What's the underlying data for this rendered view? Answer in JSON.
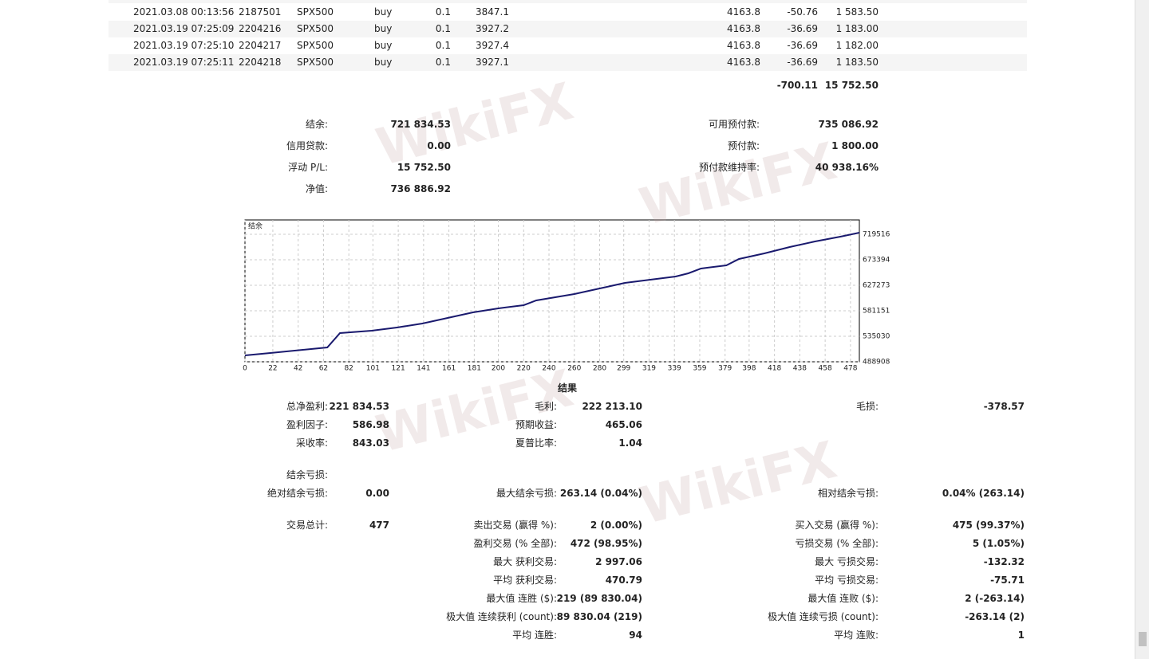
{
  "watermark": "WikiFX",
  "trades": {
    "rows": [
      [
        "2021.03.08 00:13:56",
        "2187501",
        "SPX500",
        "buy",
        "0.1",
        "3847.1",
        "4163.8",
        "-50.76",
        "1 583.50"
      ],
      [
        "2021.03.19 07:25:09",
        "2204216",
        "SPX500",
        "buy",
        "0.1",
        "3927.2",
        "4163.8",
        "-36.69",
        "1 183.00"
      ],
      [
        "2021.03.19 07:25:10",
        "2204217",
        "SPX500",
        "buy",
        "0.1",
        "3927.4",
        "4163.8",
        "-36.69",
        "1 182.00"
      ],
      [
        "2021.03.19 07:25:11",
        "2204218",
        "SPX500",
        "buy",
        "0.1",
        "3927.1",
        "4163.8",
        "-36.69",
        "1 183.50"
      ]
    ],
    "totals": [
      "-700.11",
      "15 752.50"
    ]
  },
  "account": {
    "left": [
      [
        "结余:",
        "721 834.53"
      ],
      [
        "信用贷款:",
        "0.00"
      ],
      [
        "浮动 P/L:",
        "15 752.50"
      ],
      [
        "净值:",
        "736 886.92"
      ]
    ],
    "right": [
      [
        "可用预付款:",
        "735 086.92"
      ],
      [
        "预付款:",
        "1 800.00"
      ],
      [
        "预付款维持率:",
        "40 938.16%"
      ]
    ]
  },
  "chart_data": {
    "type": "line",
    "title": "结余",
    "x": [
      0,
      20,
      65,
      75,
      100,
      120,
      140,
      160,
      180,
      200,
      220,
      230,
      260,
      280,
      300,
      320,
      340,
      350,
      360,
      380,
      390,
      410,
      430,
      450,
      470,
      485
    ],
    "values": [
      500438,
      504762,
      514852,
      540797,
      545121,
      550886,
      558094,
      568183,
      578273,
      585479,
      591244,
      599893,
      611423,
      621513,
      631602,
      637367,
      643132,
      648898,
      657546,
      663311,
      674842,
      684931,
      696462,
      706551,
      715199,
      722405
    ],
    "color": "#1a1a6e",
    "xlim": [
      0,
      485
    ],
    "ylim": [
      488908,
      745460
    ],
    "xticks": [
      0,
      22,
      42,
      62,
      82,
      101,
      121,
      141,
      161,
      181,
      200,
      220,
      240,
      260,
      280,
      299,
      319,
      339,
      359,
      379,
      398,
      418,
      438,
      458,
      478
    ],
    "yticks": [
      488908,
      535030,
      581151,
      627273,
      673394,
      719516
    ],
    "grid": true
  },
  "results": {
    "title": "结果",
    "rows": [
      [
        [
          "总净盈利:",
          "221 834.53"
        ],
        [
          "毛利:",
          "222 213.10"
        ],
        [
          "毛损:",
          "-378.57"
        ]
      ],
      [
        [
          "盈利因子:",
          "586.98"
        ],
        [
          "预期收益:",
          "465.06"
        ],
        null
      ],
      [
        [
          "采收率:",
          "843.03"
        ],
        [
          "夏普比率:",
          "1.04"
        ],
        null
      ],
      [
        [
          "结余亏损:"
        ],
        null,
        null
      ],
      [
        [
          "绝对结余亏损:",
          "0.00"
        ],
        [
          "最大结余亏损:",
          "263.14 (0.04%)"
        ],
        [
          "相对结余亏损:",
          "0.04% (263.14)"
        ]
      ],
      [
        [
          "交易总计:",
          "477"
        ],
        [
          "卖出交易 (赢得 %):",
          "2 (0.00%)"
        ],
        [
          "买入交易 (赢得 %):",
          "475 (99.37%)"
        ]
      ],
      [
        null,
        [
          "盈利交易 (% 全部):",
          "472 (98.95%)"
        ],
        [
          "亏损交易 (% 全部):",
          "5 (1.05%)"
        ]
      ],
      [
        null,
        [
          "最大 获利交易:",
          "2 997.06"
        ],
        [
          "最大 亏损交易:",
          "-132.32"
        ]
      ],
      [
        null,
        [
          "平均 获利交易:",
          "470.79"
        ],
        [
          "平均 亏损交易:",
          "-75.71"
        ]
      ],
      [
        null,
        [
          "最大值 连胜 ($):",
          "219 (89 830.04)"
        ],
        [
          "最大值 连败 ($):",
          "2 (-263.14)"
        ]
      ],
      [
        null,
        [
          "极大值 连续获利 (count):",
          "89 830.04 (219)"
        ],
        [
          "极大值 连续亏损 (count):",
          "-263.14 (2)"
        ]
      ],
      [
        null,
        [
          "平均 连胜:",
          "94"
        ],
        [
          "平均 连败:",
          "1"
        ]
      ]
    ]
  }
}
